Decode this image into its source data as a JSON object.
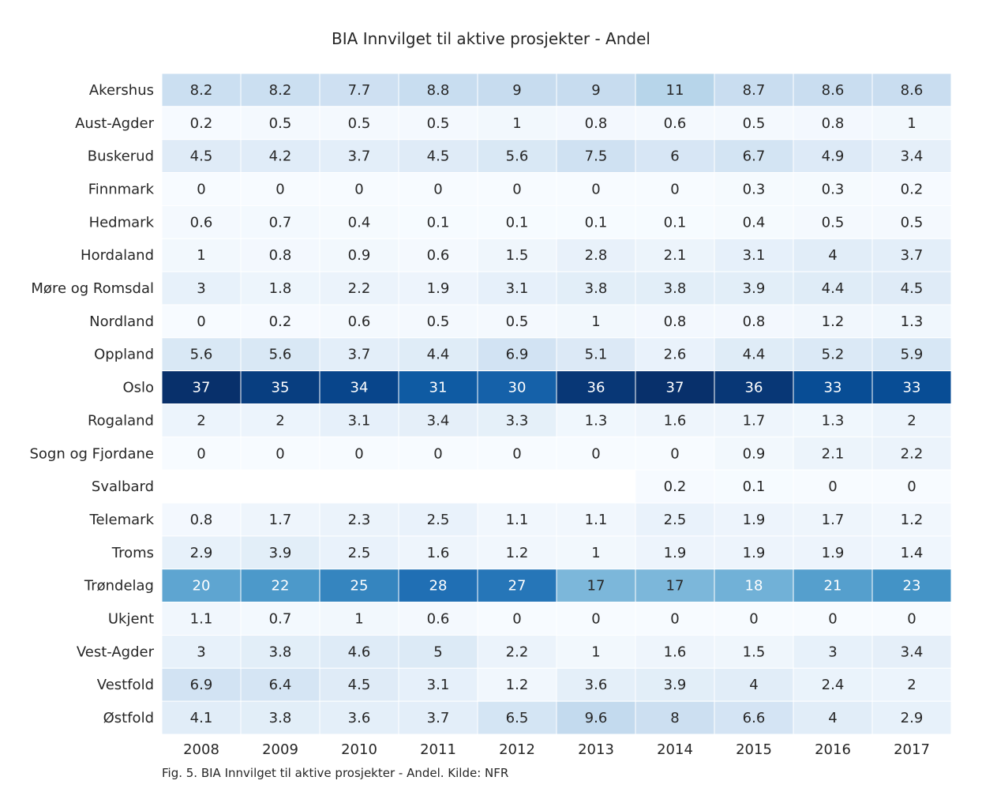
{
  "chart_data": {
    "type": "heatmap",
    "title": "BIA Innvilget til aktive prosjekter - Andel",
    "caption": "Fig. 5. BIA Innvilget til aktive prosjekter - Andel. Kilde: NFR",
    "colormap": "Blues",
    "color_range": [
      0,
      37
    ],
    "x": [
      "2008",
      "2009",
      "2010",
      "2011",
      "2012",
      "2013",
      "2014",
      "2015",
      "2016",
      "2017"
    ],
    "y": [
      "Akershus",
      "Aust-Agder",
      "Buskerud",
      "Finnmark",
      "Hedmark",
      "Hordaland",
      "Møre og Romsdal",
      "Nordland",
      "Oppland",
      "Oslo",
      "Rogaland",
      "Sogn og Fjordane",
      "Svalbard",
      "Telemark",
      "Troms",
      "Trøndelag",
      "Ukjent",
      "Vest-Agder",
      "Vestfold",
      "Østfold"
    ],
    "values": [
      [
        8.2,
        8.2,
        7.7,
        8.8,
        9,
        9,
        11,
        8.7,
        8.6,
        8.6
      ],
      [
        0.2,
        0.5,
        0.5,
        0.5,
        1,
        0.8,
        0.6,
        0.5,
        0.8,
        1
      ],
      [
        4.5,
        4.2,
        3.7,
        4.5,
        5.6,
        7.5,
        6,
        6.7,
        4.9,
        3.4
      ],
      [
        0,
        0,
        0,
        0,
        0,
        0,
        0,
        0.3,
        0.3,
        0.2
      ],
      [
        0.6,
        0.7,
        0.4,
        0.1,
        0.1,
        0.1,
        0.1,
        0.4,
        0.5,
        0.5
      ],
      [
        1,
        0.8,
        0.9,
        0.6,
        1.5,
        2.8,
        2.1,
        3.1,
        4,
        3.7
      ],
      [
        3,
        1.8,
        2.2,
        1.9,
        3.1,
        3.8,
        3.8,
        3.9,
        4.4,
        4.5
      ],
      [
        0,
        0.2,
        0.6,
        0.5,
        0.5,
        1,
        0.8,
        0.8,
        1.2,
        1.3
      ],
      [
        5.6,
        5.6,
        3.7,
        4.4,
        6.9,
        5.1,
        2.6,
        4.4,
        5.2,
        5.9
      ],
      [
        37,
        35,
        34,
        31,
        30,
        36,
        37,
        36,
        33,
        33
      ],
      [
        2,
        2,
        3.1,
        3.4,
        3.3,
        1.3,
        1.6,
        1.7,
        1.3,
        2
      ],
      [
        0,
        0,
        0,
        0,
        0,
        0,
        0,
        0.9,
        2.1,
        2.2
      ],
      [
        null,
        null,
        null,
        null,
        null,
        null,
        0.2,
        0.1,
        0,
        0
      ],
      [
        0.8,
        1.7,
        2.3,
        2.5,
        1.1,
        1.1,
        2.5,
        1.9,
        1.7,
        1.2
      ],
      [
        2.9,
        3.9,
        2.5,
        1.6,
        1.2,
        1,
        1.9,
        1.9,
        1.9,
        1.4
      ],
      [
        20,
        22,
        25,
        28,
        27,
        17,
        17,
        18,
        21,
        23
      ],
      [
        1.1,
        0.7,
        1,
        0.6,
        0,
        0,
        0,
        0,
        0,
        0
      ],
      [
        3,
        3.8,
        4.6,
        5,
        2.2,
        1,
        1.6,
        1.5,
        3,
        3.4
      ],
      [
        6.9,
        6.4,
        4.5,
        3.1,
        1.2,
        3.6,
        3.9,
        4,
        2.4,
        2
      ],
      [
        4.1,
        3.8,
        3.6,
        3.7,
        6.5,
        9.6,
        8,
        6.6,
        4,
        2.9
      ]
    ]
  }
}
